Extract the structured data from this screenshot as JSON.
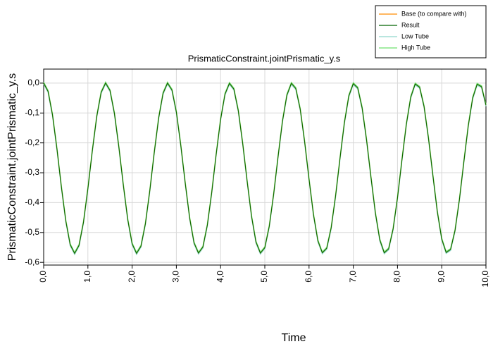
{
  "chart_data": {
    "type": "line",
    "title": "PrismaticConstraint.jointPrismatic_y.s",
    "x_label": "Time",
    "y_label": "PrismaticConstraint.jointPrismatic_y.s",
    "xlim": [
      0,
      10
    ],
    "ylim": [
      -0.609,
      0.047
    ],
    "xticks": [
      {
        "value": 0,
        "label": "0,0"
      },
      {
        "value": 1,
        "label": "1,0"
      },
      {
        "value": 2,
        "label": "2,0"
      },
      {
        "value": 3,
        "label": "3,0"
      },
      {
        "value": 4,
        "label": "4,0"
      },
      {
        "value": 5,
        "label": "5,0"
      },
      {
        "value": 6,
        "label": "6,0"
      },
      {
        "value": 7,
        "label": "7,0"
      },
      {
        "value": 8,
        "label": "8,0"
      },
      {
        "value": 9,
        "label": "9,0"
      },
      {
        "value": 10,
        "label": "10,0"
      }
    ],
    "yticks": [
      {
        "value": 0,
        "label": "0,0"
      },
      {
        "value": -0.1,
        "label": "-0,1"
      },
      {
        "value": -0.2,
        "label": "-0,2"
      },
      {
        "value": -0.3,
        "label": "-0,3"
      },
      {
        "value": -0.4,
        "label": "-0,4"
      },
      {
        "value": -0.5,
        "label": "-0,5"
      },
      {
        "value": -0.6,
        "label": "-0,6"
      }
    ],
    "grid": true,
    "legend": "top-right",
    "x": [
      0,
      0.1,
      0.2,
      0.3,
      0.4,
      0.5,
      0.6,
      0.7,
      0.8,
      0.9,
      1,
      1.1,
      1.2,
      1.3,
      1.4,
      1.5,
      1.6,
      1.7,
      1.8,
      1.9,
      2,
      2.1,
      2.2,
      2.3,
      2.4,
      2.5,
      2.6,
      2.7,
      2.8,
      2.9,
      3,
      3.1,
      3.2,
      3.3,
      3.4,
      3.5,
      3.6,
      3.7,
      3.8,
      3.9,
      4,
      4.1,
      4.2,
      4.3,
      4.4,
      4.5,
      4.6,
      4.7,
      4.8,
      4.9,
      5,
      5.1,
      5.2,
      5.3,
      5.4,
      5.5,
      5.6,
      5.7,
      5.8,
      5.9,
      6,
      6.1,
      6.2,
      6.3,
      6.4,
      6.5,
      6.6,
      6.7,
      6.8,
      6.9,
      7,
      7.1,
      7.2,
      7.3,
      7.4,
      7.5,
      7.6,
      7.7,
      7.8,
      7.9,
      8,
      8.1,
      8.2,
      8.3,
      8.4,
      8.5,
      8.6,
      8.7,
      8.8,
      8.9,
      9,
      9.1,
      9.2,
      9.3,
      9.4,
      9.5,
      9.6,
      9.7,
      9.8,
      9.9,
      10
    ],
    "series": [
      {
        "name": "Base (to compare with)",
        "color": "#ff8c00",
        "values": [
          0,
          -0.028,
          -0.107,
          -0.22,
          -0.347,
          -0.461,
          -0.541,
          -0.57,
          -0.543,
          -0.466,
          -0.353,
          -0.227,
          -0.112,
          -0.031,
          0,
          -0.025,
          -0.102,
          -0.214,
          -0.34,
          -0.456,
          -0.538,
          -0.57,
          -0.546,
          -0.471,
          -0.36,
          -0.233,
          -0.117,
          -0.034,
          0,
          -0.023,
          -0.097,
          -0.208,
          -0.334,
          -0.451,
          -0.535,
          -0.569,
          -0.549,
          -0.476,
          -0.366,
          -0.239,
          -0.122,
          -0.037,
          -0.001,
          -0.02,
          -0.092,
          -0.202,
          -0.328,
          -0.446,
          -0.532,
          -0.569,
          -0.551,
          -0.48,
          -0.372,
          -0.246,
          -0.127,
          -0.04,
          -0.001,
          -0.018,
          -0.087,
          -0.196,
          -0.322,
          -0.44,
          -0.528,
          -0.568,
          -0.553,
          -0.485,
          -0.378,
          -0.252,
          -0.132,
          -0.043,
          -0.002,
          -0.016,
          -0.083,
          -0.19,
          -0.315,
          -0.435,
          -0.525,
          -0.568,
          -0.555,
          -0.489,
          -0.384,
          -0.258,
          -0.138,
          -0.047,
          -0.003,
          -0.014,
          -0.078,
          -0.184,
          -0.309,
          -0.43,
          -0.522,
          -0.567,
          -0.557,
          -0.494,
          -0.39,
          -0.264,
          -0.143,
          -0.05,
          -0.004,
          -0.012,
          -0.074
        ]
      },
      {
        "name": "Result",
        "color": "#006400",
        "values": [
          0,
          -0.028,
          -0.107,
          -0.22,
          -0.347,
          -0.461,
          -0.541,
          -0.57,
          -0.543,
          -0.466,
          -0.353,
          -0.227,
          -0.112,
          -0.031,
          0,
          -0.025,
          -0.102,
          -0.214,
          -0.34,
          -0.456,
          -0.538,
          -0.57,
          -0.546,
          -0.471,
          -0.36,
          -0.233,
          -0.117,
          -0.034,
          0,
          -0.023,
          -0.097,
          -0.208,
          -0.334,
          -0.451,
          -0.535,
          -0.569,
          -0.549,
          -0.476,
          -0.366,
          -0.239,
          -0.122,
          -0.037,
          -0.001,
          -0.02,
          -0.092,
          -0.202,
          -0.328,
          -0.446,
          -0.532,
          -0.569,
          -0.551,
          -0.48,
          -0.372,
          -0.246,
          -0.127,
          -0.04,
          -0.001,
          -0.018,
          -0.087,
          -0.196,
          -0.322,
          -0.44,
          -0.528,
          -0.568,
          -0.553,
          -0.485,
          -0.378,
          -0.252,
          -0.132,
          -0.043,
          -0.002,
          -0.016,
          -0.083,
          -0.19,
          -0.315,
          -0.435,
          -0.525,
          -0.568,
          -0.555,
          -0.489,
          -0.384,
          -0.258,
          -0.138,
          -0.047,
          -0.003,
          -0.014,
          -0.078,
          -0.184,
          -0.309,
          -0.43,
          -0.522,
          -0.567,
          -0.557,
          -0.494,
          -0.39,
          -0.264,
          -0.143,
          -0.05,
          -0.004,
          -0.012,
          -0.074
        ]
      },
      {
        "name": "Low Tube",
        "color": "#8fd8cc",
        "values": [
          -0.003,
          -0.031,
          -0.11,
          -0.223,
          -0.35,
          -0.464,
          -0.544,
          -0.573,
          -0.546,
          -0.469,
          -0.356,
          -0.23,
          -0.115,
          -0.034,
          -0.003,
          -0.028,
          -0.105,
          -0.217,
          -0.343,
          -0.459,
          -0.541,
          -0.573,
          -0.549,
          -0.474,
          -0.363,
          -0.236,
          -0.12,
          -0.037,
          -0.003,
          -0.026,
          -0.1,
          -0.211,
          -0.337,
          -0.454,
          -0.538,
          -0.572,
          -0.552,
          -0.479,
          -0.369,
          -0.242,
          -0.125,
          -0.04,
          -0.004,
          -0.023,
          -0.095,
          -0.205,
          -0.331,
          -0.449,
          -0.535,
          -0.572,
          -0.554,
          -0.483,
          -0.375,
          -0.249,
          -0.13,
          -0.043,
          -0.004,
          -0.021,
          -0.09,
          -0.199,
          -0.325,
          -0.443,
          -0.531,
          -0.571,
          -0.556,
          -0.488,
          -0.381,
          -0.255,
          -0.135,
          -0.046,
          -0.005,
          -0.019,
          -0.086,
          -0.193,
          -0.318,
          -0.438,
          -0.528,
          -0.571,
          -0.558,
          -0.492,
          -0.387,
          -0.261,
          -0.141,
          -0.05,
          -0.006,
          -0.017,
          -0.081,
          -0.187,
          -0.312,
          -0.433,
          -0.525,
          -0.57,
          -0.56,
          -0.497,
          -0.393,
          -0.267,
          -0.146,
          -0.053,
          -0.007,
          -0.015,
          -0.077
        ]
      },
      {
        "name": "High Tube",
        "color": "#6ee06e",
        "values": [
          0.003,
          -0.025,
          -0.104,
          -0.217,
          -0.344,
          -0.458,
          -0.538,
          -0.567,
          -0.54,
          -0.463,
          -0.35,
          -0.224,
          -0.109,
          -0.028,
          0.003,
          -0.022,
          -0.099,
          -0.211,
          -0.337,
          -0.453,
          -0.535,
          -0.567,
          -0.543,
          -0.468,
          -0.357,
          -0.23,
          -0.114,
          -0.031,
          0.003,
          -0.02,
          -0.094,
          -0.205,
          -0.331,
          -0.448,
          -0.532,
          -0.566,
          -0.546,
          -0.473,
          -0.363,
          -0.236,
          -0.119,
          -0.034,
          0.002,
          -0.017,
          -0.089,
          -0.199,
          -0.325,
          -0.443,
          -0.529,
          -0.566,
          -0.548,
          -0.477,
          -0.369,
          -0.243,
          -0.124,
          -0.037,
          0.002,
          -0.015,
          -0.084,
          -0.193,
          -0.319,
          -0.437,
          -0.525,
          -0.565,
          -0.55,
          -0.482,
          -0.375,
          -0.249,
          -0.129,
          -0.04,
          0.001,
          -0.013,
          -0.08,
          -0.187,
          -0.312,
          -0.432,
          -0.522,
          -0.565,
          -0.552,
          -0.486,
          -0.381,
          -0.255,
          -0.135,
          -0.044,
          0,
          -0.011,
          -0.075,
          -0.181,
          -0.306,
          -0.427,
          -0.519,
          -0.564,
          -0.554,
          -0.491,
          -0.387,
          -0.261,
          -0.14,
          -0.047,
          -0.001,
          -0.009,
          -0.071
        ]
      }
    ]
  }
}
